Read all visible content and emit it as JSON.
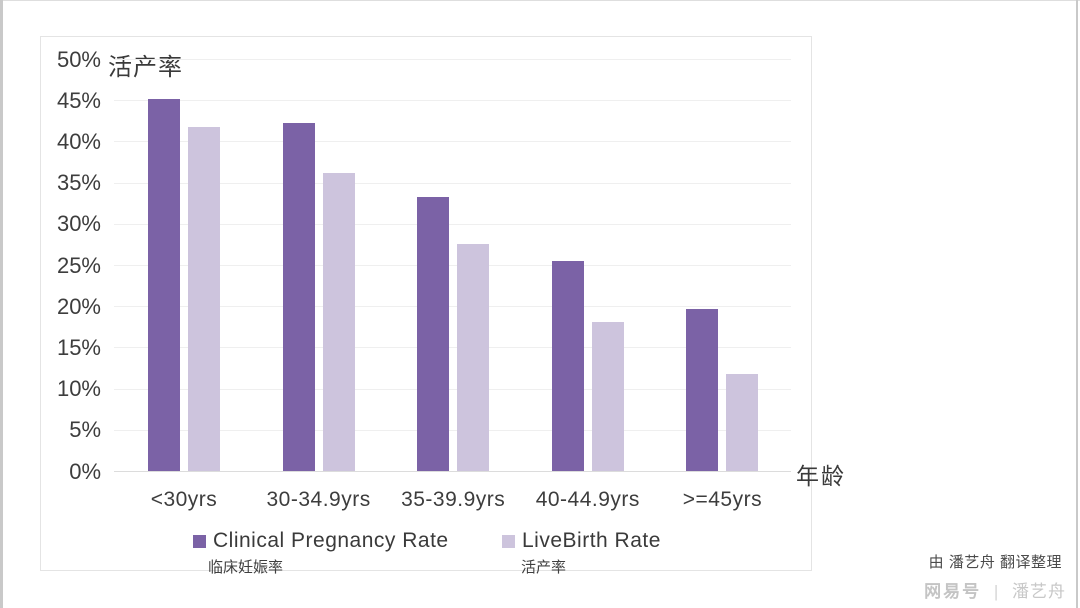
{
  "chart_data": {
    "type": "bar",
    "title": "活产率",
    "xlabel": "年龄",
    "ylabel": "",
    "ylim": [
      0,
      50
    ],
    "ytick_step": 5,
    "ytick_format": "percent",
    "grid": true,
    "legend_position": "bottom",
    "categories": [
      "<30yrs",
      "30-34.9yrs",
      "35-39.9yrs",
      "40-44.9yrs",
      ">=45yrs"
    ],
    "series": [
      {
        "name": "Clinical Pregnancy Rate",
        "name_zh": "临床妊娠率",
        "color": "#7B62A6",
        "values": [
          45.1,
          42.2,
          33.3,
          25.5,
          19.6
        ]
      },
      {
        "name": "LiveBirth Rate",
        "name_zh": "活产率",
        "color": "#CDC4DD",
        "values": [
          41.8,
          36.2,
          27.5,
          18.1,
          11.8
        ]
      }
    ]
  },
  "footer": {
    "credit": "由 潘艺舟 翻译整理",
    "watermark_brand": "网易号",
    "watermark_sep": "|",
    "watermark_author": "潘艺舟"
  }
}
